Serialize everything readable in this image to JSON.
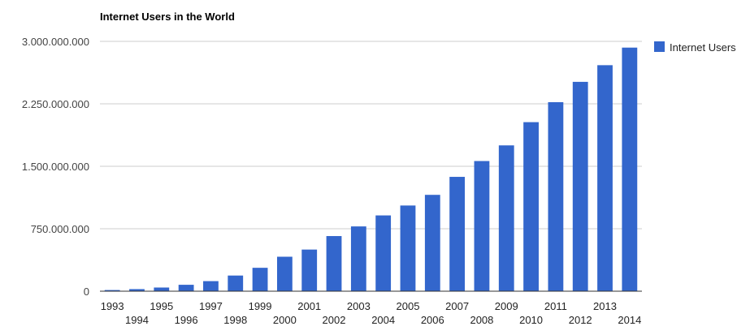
{
  "chart_data": {
    "type": "bar",
    "title": "Internet Users in the World",
    "xlabel": "",
    "ylabel": "",
    "categories": [
      "1993",
      "1994",
      "1995",
      "1996",
      "1997",
      "1998",
      "1999",
      "2000",
      "2001",
      "2002",
      "2003",
      "2004",
      "2005",
      "2006",
      "2007",
      "2008",
      "2009",
      "2010",
      "2011",
      "2012",
      "2013",
      "2014"
    ],
    "series": [
      {
        "name": "Internet Users",
        "color": "#3366cc",
        "values": [
          14000000,
          25000000,
          44000000,
          77000000,
          121000000,
          188000000,
          281000000,
          414000000,
          500000000,
          662000000,
          778000000,
          910000000,
          1029000000,
          1157000000,
          1373000000,
          1563000000,
          1751000000,
          2030000000,
          2270000000,
          2514000000,
          2714000000,
          2925000000
        ]
      }
    ],
    "ylim": [
      0,
      3000000000
    ],
    "yticks": [
      0,
      750000000,
      1500000000,
      2250000000,
      3000000000
    ],
    "ytick_labels": [
      "0",
      "750.000.000",
      "1.500.000.000",
      "2.250.000.000",
      "3.000.000.000"
    ],
    "grid": true,
    "legend": {
      "placement": "right",
      "entries": [
        "Internet Users"
      ]
    }
  }
}
